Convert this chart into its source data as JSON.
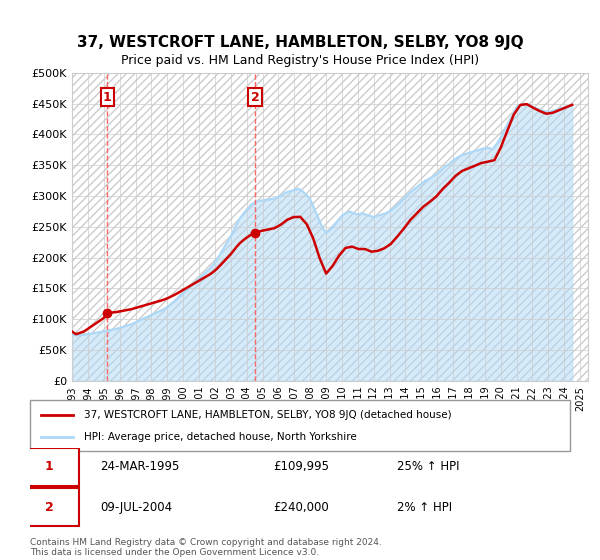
{
  "title": "37, WESTCROFT LANE, HAMBLETON, SELBY, YO8 9JQ",
  "subtitle": "Price paid vs. HM Land Registry's House Price Index (HPI)",
  "ylim": [
    0,
    500000
  ],
  "yticks": [
    0,
    50000,
    100000,
    150000,
    200000,
    250000,
    300000,
    350000,
    400000,
    450000,
    500000
  ],
  "ytick_labels": [
    "£0",
    "£50K",
    "£100K",
    "£150K",
    "£200K",
    "£250K",
    "£300K",
    "£350K",
    "£400K",
    "£450K",
    "£500K"
  ],
  "xlim_start": 1993.0,
  "xlim_end": 2025.5,
  "xtick_years": [
    1993,
    1994,
    1995,
    1996,
    1997,
    1998,
    1999,
    2000,
    2001,
    2002,
    2003,
    2004,
    2005,
    2006,
    2007,
    2008,
    2009,
    2010,
    2011,
    2012,
    2013,
    2014,
    2015,
    2016,
    2017,
    2018,
    2019,
    2020,
    2021,
    2022,
    2023,
    2024,
    2025
  ],
  "hpi_color": "#add8f7",
  "property_color": "#cc0000",
  "dashed_line_color": "#ff6666",
  "point1_x": 1995.23,
  "point1_y": 109995,
  "point2_x": 2004.52,
  "point2_y": 240000,
  "sale1_label": "1",
  "sale2_label": "2",
  "sale1_date": "24-MAR-1995",
  "sale1_price": "£109,995",
  "sale1_hpi": "25% ↑ HPI",
  "sale2_date": "09-JUL-2004",
  "sale2_price": "£240,000",
  "sale2_hpi": "2% ↑ HPI",
  "legend_line1": "37, WESTCROFT LANE, HAMBLETON, SELBY, YO8 9JQ (detached house)",
  "legend_line2": "HPI: Average price, detached house, North Yorkshire",
  "footer": "Contains HM Land Registry data © Crown copyright and database right 2024.\nThis data is licensed under the Open Government Licence v3.0.",
  "hpi_data_x": [
    1993.0,
    1993.25,
    1993.5,
    1993.75,
    1994.0,
    1994.25,
    1994.5,
    1994.75,
    1995.0,
    1995.25,
    1995.5,
    1995.75,
    1996.0,
    1996.25,
    1996.5,
    1996.75,
    1997.0,
    1997.25,
    1997.5,
    1997.75,
    1998.0,
    1998.25,
    1998.5,
    1998.75,
    1999.0,
    1999.25,
    1999.5,
    1999.75,
    2000.0,
    2000.25,
    2000.5,
    2000.75,
    2001.0,
    2001.25,
    2001.5,
    2001.75,
    2002.0,
    2002.25,
    2002.5,
    2002.75,
    2003.0,
    2003.25,
    2003.5,
    2003.75,
    2004.0,
    2004.25,
    2004.5,
    2004.75,
    2005.0,
    2005.25,
    2005.5,
    2005.75,
    2006.0,
    2006.25,
    2006.5,
    2006.75,
    2007.0,
    2007.25,
    2007.5,
    2007.75,
    2008.0,
    2008.25,
    2008.5,
    2008.75,
    2009.0,
    2009.25,
    2009.5,
    2009.75,
    2010.0,
    2010.25,
    2010.5,
    2010.75,
    2011.0,
    2011.25,
    2011.5,
    2011.75,
    2012.0,
    2012.25,
    2012.5,
    2012.75,
    2013.0,
    2013.25,
    2013.5,
    2013.75,
    2014.0,
    2014.25,
    2014.5,
    2014.75,
    2015.0,
    2015.25,
    2015.5,
    2015.75,
    2016.0,
    2016.25,
    2016.5,
    2016.75,
    2017.0,
    2017.25,
    2017.5,
    2017.75,
    2018.0,
    2018.25,
    2018.5,
    2018.75,
    2019.0,
    2019.25,
    2019.5,
    2019.75,
    2020.0,
    2020.25,
    2020.5,
    2020.75,
    2021.0,
    2021.25,
    2021.5,
    2021.75,
    2022.0,
    2022.25,
    2022.5,
    2022.75,
    2023.0,
    2023.25,
    2023.5,
    2023.75,
    2024.0,
    2024.25,
    2024.5
  ],
  "hpi_data_y": [
    75000,
    74000,
    74500,
    75000,
    76000,
    77000,
    78000,
    79000,
    80000,
    82000,
    83000,
    84000,
    86000,
    88000,
    90000,
    92000,
    95000,
    98000,
    101000,
    104000,
    107000,
    110000,
    113000,
    116000,
    120000,
    125000,
    130000,
    136000,
    142000,
    148000,
    154000,
    160000,
    166000,
    172000,
    178000,
    184000,
    192000,
    202000,
    213000,
    224000,
    235000,
    248000,
    261000,
    270000,
    278000,
    285000,
    290000,
    292000,
    293000,
    294000,
    295000,
    296000,
    298000,
    302000,
    306000,
    308000,
    310000,
    312000,
    308000,
    302000,
    295000,
    280000,
    265000,
    250000,
    240000,
    245000,
    252000,
    260000,
    268000,
    272000,
    275000,
    272000,
    270000,
    272000,
    270000,
    268000,
    266000,
    268000,
    270000,
    272000,
    275000,
    280000,
    286000,
    292000,
    298000,
    305000,
    310000,
    315000,
    320000,
    325000,
    328000,
    332000,
    336000,
    342000,
    348000,
    352000,
    358000,
    362000,
    366000,
    368000,
    370000,
    372000,
    374000,
    376000,
    378000,
    378000,
    376000,
    385000,
    395000,
    408000,
    420000,
    432000,
    445000,
    448000,
    450000,
    448000,
    445000,
    442000,
    440000,
    438000,
    436000,
    438000,
    440000,
    442000,
    444000,
    446000,
    448000
  ],
  "property_data_x": [
    1993.0,
    1995.23,
    2004.52,
    2024.5
  ],
  "property_data_y": [
    80000,
    109995,
    240000,
    448000
  ],
  "background_color": "#ffffff",
  "hatch_color": "#e8e8e8"
}
